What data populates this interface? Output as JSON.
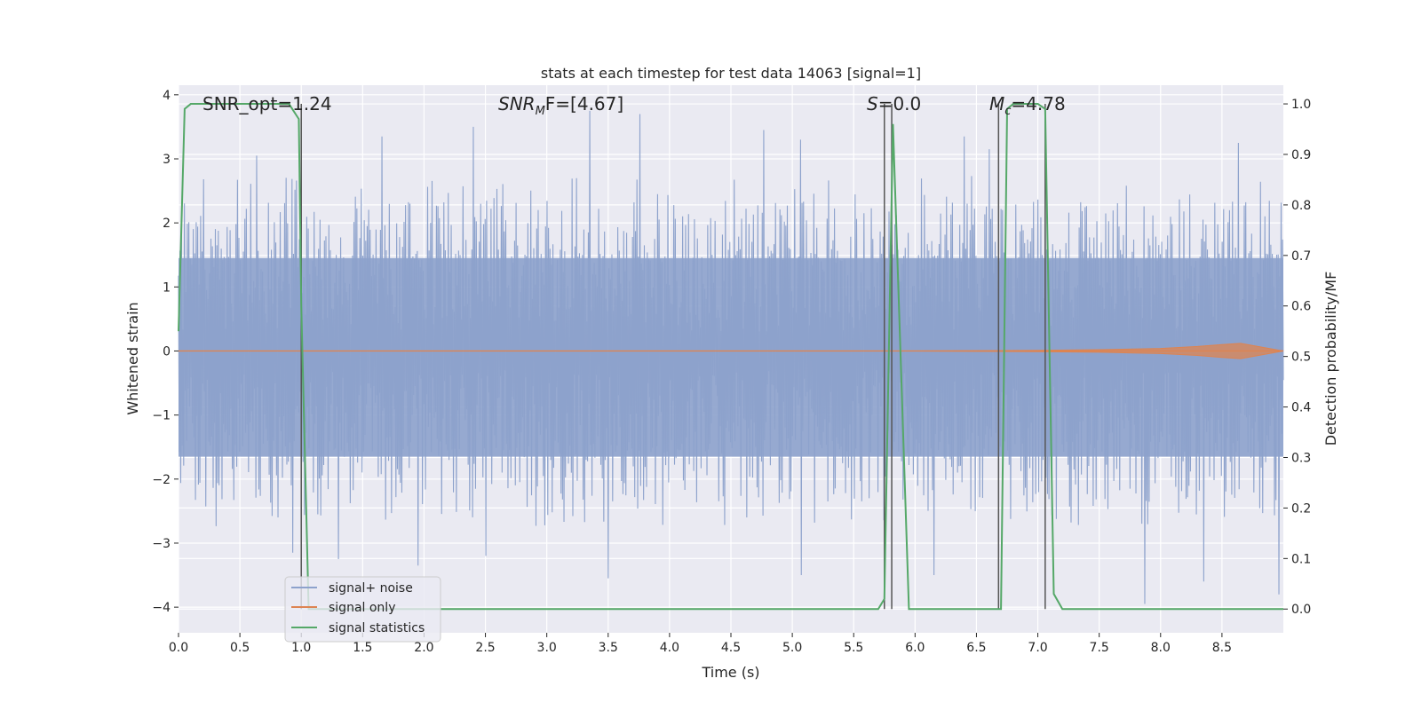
{
  "chart_data": {
    "type": "line",
    "title": "stats at each timestep for test data 14063 [signal=1]",
    "xlabel": "Time (s)",
    "ylabel": "Whitened strain",
    "y2label": "Detection probability/MF",
    "xlim": [
      0.0,
      9.0
    ],
    "ylim": [
      -4.4,
      4.15
    ],
    "y2lim": [
      -0.047,
      1.037
    ],
    "grid": true,
    "legend_position": "lower-left",
    "x_ticks": [
      "0.0",
      "0.5",
      "1.0",
      "1.5",
      "2.0",
      "2.5",
      "3.0",
      "3.5",
      "4.0",
      "4.5",
      "5.0",
      "5.5",
      "6.0",
      "6.5",
      "7.0",
      "7.5",
      "8.0",
      "8.5"
    ],
    "y_ticks": [
      "4",
      "3",
      "2",
      "1",
      "0",
      "−1",
      "−2",
      "−3",
      "−4"
    ],
    "y2_ticks": [
      "1.0",
      "0.9",
      "0.8",
      "0.7",
      "0.6",
      "0.5",
      "0.4",
      "0.3",
      "0.2",
      "0.1",
      "0.0"
    ],
    "colors": {
      "noise": "#8da2cc",
      "signal": "#dd8452",
      "stats": "#55a868",
      "vlines": "#555555",
      "background": "#eaeaf2",
      "grid": "#ffffff"
    },
    "series": [
      {
        "name": "signal+ noise",
        "description_values": {
          "dense_band": [
            -1.65,
            1.45
          ],
          "typical_peak_range": [
            -2.7,
            2.6
          ],
          "notable_peaks": [
            {
              "x": 0.63,
              "y": 3.05
            },
            {
              "x": 1.65,
              "y": 3.35
            },
            {
              "x": 2.4,
              "y": 3.5
            },
            {
              "x": 3.35,
              "y": 3.75
            },
            {
              "x": 3.75,
              "y": 3.7
            },
            {
              "x": 4.77,
              "y": 3.45
            },
            {
              "x": 5.07,
              "y": 3.3
            },
            {
              "x": 6.4,
              "y": 3.35
            },
            {
              "x": 6.6,
              "y": 3.15
            },
            {
              "x": 8.63,
              "y": 3.25
            },
            {
              "x": 0.93,
              "y": -3.15
            },
            {
              "x": 1.3,
              "y": -3.25
            },
            {
              "x": 1.95,
              "y": -3.35
            },
            {
              "x": 2.5,
              "y": -3.2
            },
            {
              "x": 3.5,
              "y": -3.55
            },
            {
              "x": 5.07,
              "y": -3.5
            },
            {
              "x": 6.15,
              "y": -3.5
            },
            {
              "x": 7.87,
              "y": -3.95
            },
            {
              "x": 8.35,
              "y": -3.6
            },
            {
              "x": 8.96,
              "y": -3.8
            }
          ]
        }
      },
      {
        "name": "signal only",
        "x": [
          0.0,
          6.0,
          7.0,
          7.5,
          8.0,
          8.3,
          8.5,
          8.65,
          9.0
        ],
        "y": [
          0.0,
          0.0,
          0.01,
          0.02,
          0.04,
          0.07,
          0.1,
          0.12,
          0.0
        ]
      },
      {
        "name": "signal statistics",
        "x": [
          0.0,
          0.05,
          0.1,
          0.5,
          0.9,
          0.98,
          1.0,
          1.06,
          1.5,
          5.0,
          5.7,
          5.75,
          5.82,
          5.95,
          6.5,
          6.7,
          6.75,
          6.8,
          7.0,
          7.06,
          7.13,
          7.2,
          8.0,
          9.0
        ],
        "y": [
          0.55,
          0.99,
          1.0,
          1.0,
          1.0,
          0.97,
          0.6,
          0.0,
          0.0,
          0.0,
          0.0,
          0.02,
          0.96,
          0.0,
          0.0,
          0.0,
          0.99,
          1.0,
          1.0,
          0.99,
          0.03,
          0.0,
          0.0,
          0.0
        ]
      }
    ],
    "vertical_lines": [
      1.0,
      5.75,
      5.81,
      6.68,
      7.06
    ],
    "annotations": [
      {
        "x": 0.2,
        "text": "SNR_opt=1.24"
      },
      {
        "x": 2.6,
        "text": "SNR_MF=[4.67]"
      },
      {
        "x": 5.62,
        "text": "S=0.0"
      },
      {
        "x": 6.62,
        "text": "M_c=4.78"
      }
    ]
  },
  "legend": {
    "items": [
      {
        "label": "signal+ noise"
      },
      {
        "label": "signal only"
      },
      {
        "label": "signal statistics"
      }
    ]
  },
  "annot_display": {
    "snr_opt": "SNR_opt=1.24",
    "snr_mf_sym": "SNR",
    "snr_mf_sub": "M",
    "snr_mf_tail": "F=[4.67]",
    "s_sym": "S",
    "s_tail": "=0.0",
    "mc_sym": "M",
    "mc_sub": "c",
    "mc_tail": "=4.78"
  }
}
